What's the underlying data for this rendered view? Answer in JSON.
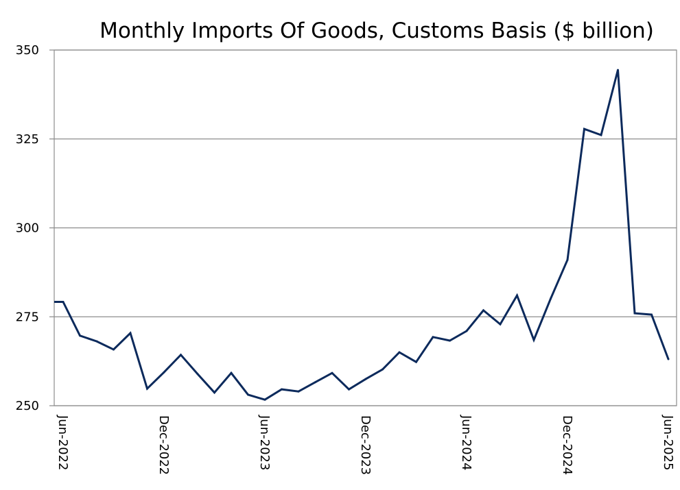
{
  "chart_data": {
    "type": "line",
    "title": "Monthly Imports Of Goods, Customs Basis ($ billion)",
    "xlabel": "",
    "ylabel": "",
    "ylim": [
      250,
      350
    ],
    "yticks": [
      "250",
      "275",
      "300",
      "325",
      "350"
    ],
    "ytick_values": [
      250,
      275,
      300,
      325,
      350
    ],
    "grid": true,
    "legend": "none",
    "x": [
      "May-2022",
      "Jun-2022",
      "Jul-2022",
      "Aug-2022",
      "Sep-2022",
      "Oct-2022",
      "Nov-2022",
      "Dec-2022",
      "Jan-2023",
      "Feb-2023",
      "Mar-2023",
      "Apr-2023",
      "May-2023",
      "Jun-2023",
      "Jul-2023",
      "Aug-2023",
      "Sep-2023",
      "Oct-2023",
      "Nov-2023",
      "Dec-2023",
      "Jan-2024",
      "Feb-2024",
      "Mar-2024",
      "Apr-2024",
      "May-2024",
      "Jun-2024",
      "Jul-2024",
      "Aug-2024",
      "Sep-2024",
      "Oct-2024",
      "Nov-2024",
      "Dec-2024",
      "Jan-2025",
      "Feb-2025",
      "Mar-2025",
      "Apr-2025",
      "May-2025",
      "Jun-2025"
    ],
    "xtick_labels": [
      "Jun-2022",
      "Dec-2022",
      "Jun-2023",
      "Dec-2023",
      "Jun-2024",
      "Dec-2024",
      "Jun-2025"
    ],
    "xtick_indices": [
      1,
      7,
      13,
      19,
      25,
      31,
      37
    ],
    "series": [
      {
        "name": "Monthly Imports Of Goods",
        "color": "#0c2a5c",
        "values": [
          279.2,
          279.2,
          269.7,
          268.1,
          265.8,
          270.4,
          254.8,
          259.4,
          264.3,
          258.9,
          253.7,
          259.2,
          253.1,
          251.7,
          254.6,
          254.0,
          256.6,
          259.2,
          254.6,
          257.5,
          260.2,
          265.0,
          262.3,
          269.3,
          268.3,
          271.0,
          276.8,
          272.9,
          281.0,
          268.5,
          280.1,
          291.0,
          327.8,
          326.1,
          344.4,
          276.0,
          275.6,
          263.1
        ]
      }
    ]
  },
  "colors": {
    "gridline": "#8c8c8c",
    "axis": "#8c8c8c",
    "line": "#0c2a5c"
  }
}
